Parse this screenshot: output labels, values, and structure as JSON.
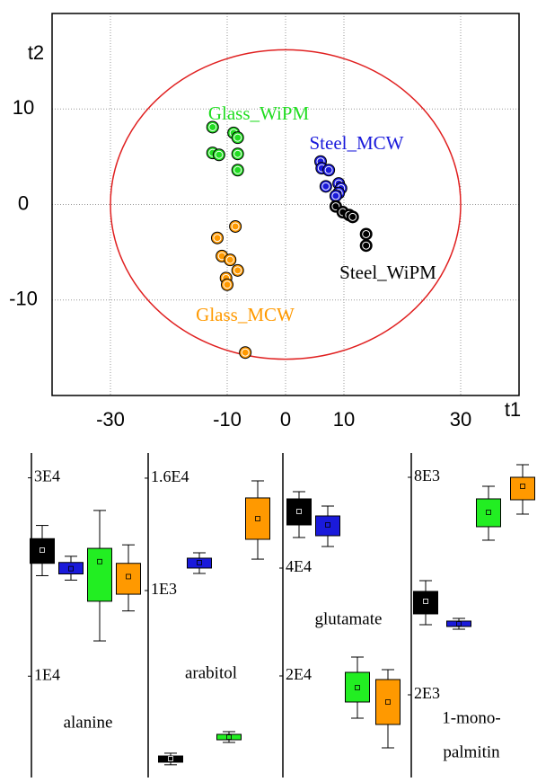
{
  "chart_data": [
    {
      "type": "scatter",
      "x_label": "t1",
      "y_label": "t2",
      "xlim": [
        -40,
        40
      ],
      "ylim": [
        -20,
        20
      ],
      "xticks": [
        -30,
        -10,
        0,
        10,
        30
      ],
      "yticks": [
        -10,
        0,
        10
      ],
      "grid": true,
      "ellipse_radii": [
        30,
        16.2
      ],
      "ellipse_color": "#e02020",
      "series": [
        {
          "name": "Glass_WiPM",
          "color": "#22dd22",
          "x": [
            -12.5,
            -8.9,
            -8.2,
            -12.5,
            -11.4,
            -8.2,
            -8.2
          ],
          "values": [
            8.1,
            7.5,
            7.0,
            5.4,
            5.2,
            5.3,
            3.6
          ]
        },
        {
          "name": "Glass_MCW",
          "color": "#ff9900",
          "x": [
            -8.6,
            -11.7,
            -10.9,
            -9.5,
            -8.2,
            -10.2,
            -10.0,
            -6.9
          ],
          "values": [
            -2.3,
            -3.5,
            -5.4,
            -5.8,
            -6.9,
            -7.7,
            -8.4,
            -15.5
          ]
        },
        {
          "name": "Steel_MCW",
          "color": "#1a1adb",
          "x": [
            6.0,
            6.2,
            7.4,
            6.9,
            9.1,
            9.5,
            9.1,
            8.6
          ],
          "values": [
            4.5,
            3.8,
            3.6,
            1.9,
            2.2,
            1.7,
            1.2,
            0.9
          ]
        },
        {
          "name": "Steel_WiPM",
          "color": "#000000",
          "x": [
            8.6,
            9.8,
            10.9,
            11.5,
            13.8,
            13.8
          ],
          "values": [
            -0.2,
            -0.8,
            -1.1,
            -1.3,
            -3.1,
            -4.3
          ]
        }
      ]
    },
    {
      "type": "box",
      "label_lines": [
        "alanine"
      ],
      "ylim": [
        235,
        31778
      ],
      "yticks": [
        {
          "value": 30000,
          "label": "3E4"
        },
        {
          "value": 10000,
          "label": "1E4"
        }
      ],
      "boxes": [
        {
          "color": "#000000",
          "whisker_low": 20133,
          "q1": 21378,
          "median": 22711,
          "q3": 23867,
          "whisker_high": 25200
        },
        {
          "color": "#1a1adb",
          "whisker_low": 19689,
          "q1": 20311,
          "median": 20844,
          "q3": 21467,
          "whisker_high": 22089
        },
        {
          "color": "#22ee22",
          "whisker_low": 13556,
          "q1": 17556,
          "median": 21556,
          "q3": 22889,
          "whisker_high": 26711
        },
        {
          "color": "#ff9900",
          "whisker_low": 16578,
          "q1": 18267,
          "median": 20044,
          "q3": 21378,
          "whisker_high": 23244
        }
      ]
    },
    {
      "type": "box",
      "label_lines": [
        "arabitol"
      ],
      "ylim": [
        11.1,
        24900
      ],
      "log_scale": true,
      "yticks": [
        {
          "value": 16000,
          "label": "1.6E4"
        },
        {
          "value": 1000,
          "label": "1E3"
        }
      ],
      "boxes": [
        {
          "color": "#000000",
          "whisker_low": 13.6,
          "q1": 14.5,
          "median": 15.8,
          "q3": 16.9,
          "whisker_high": 18.1
        },
        {
          "color": "#1a1adb",
          "whisker_low": 1525,
          "q1": 1742,
          "median": 1990,
          "q3": 2222,
          "whisker_high": 2537
        },
        {
          "color": "#22ee22",
          "whisker_low": 23.6,
          "q1": 25.2,
          "median": 26.9,
          "q3": 28.8,
          "whisker_high": 30.8
        },
        {
          "color": "#ff9900",
          "whisker_low": 2170,
          "q1": 3540,
          "median": 5890,
          "q3": 9820,
          "whisker_high": 14960
        }
      ]
    },
    {
      "type": "box",
      "label_lines": [
        "glutamate"
      ],
      "ylim": [
        2000,
        60000
      ],
      "yticks": [
        {
          "value": 40000,
          "label": "4E4"
        },
        {
          "value": 20000,
          "label": "2E4"
        }
      ],
      "boxes": [
        {
          "color": "#000000",
          "whisker_low": 45667,
          "q1": 48000,
          "median": 50500,
          "q3": 52833,
          "whisker_high": 54167
        },
        {
          "color": "#1a1adb",
          "whisker_low": 44000,
          "q1": 46000,
          "median": 48000,
          "q3": 49667,
          "whisker_high": 51500
        },
        {
          "color": "#22ee22",
          "whisker_low": 12167,
          "q1": 15167,
          "median": 17833,
          "q3": 20667,
          "whisker_high": 23500
        },
        {
          "color": "#ff9900",
          "whisker_low": 6667,
          "q1": 11000,
          "median": 15167,
          "q3": 19333,
          "whisker_high": 21167
        }
      ]
    },
    {
      "type": "box",
      "label_lines": [
        "1-mono-",
        "palmitin"
      ],
      "ylim": [
        -157,
        8471
      ],
      "yticks": [
        {
          "value": 8000,
          "label": "8E3"
        },
        {
          "value": 2000,
          "label": "2E3"
        }
      ],
      "boxes": [
        {
          "color": "#000000",
          "whisker_low": 3934,
          "q1": 4232,
          "median": 4579,
          "q3": 4852,
          "whisker_high": 5149
        },
        {
          "color": "#1a1adb",
          "whisker_low": 3810,
          "q1": 3885,
          "median": 3959,
          "q3": 4034,
          "whisker_high": 4108
        },
        {
          "color": "#22ee22",
          "whisker_low": 6265,
          "q1": 6637,
          "median": 7033,
          "q3": 7405,
          "whisker_high": 7752
        },
        {
          "color": "#ff9900",
          "whisker_low": 6984,
          "q1": 7380,
          "median": 7752,
          "q3": 8000,
          "whisker_high": 8347
        }
      ]
    }
  ]
}
